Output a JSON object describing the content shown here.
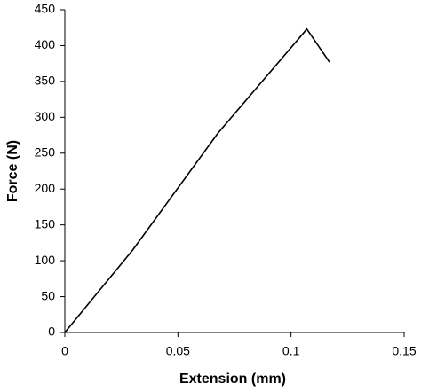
{
  "chart_data": {
    "type": "line",
    "x_label": "Extension (mm)",
    "y_label": "Force (N)",
    "series": [
      {
        "color": "#000000",
        "x": [
          0,
          0.03,
          0.0677,
          0.107,
          0.117
        ],
        "values": [
          0,
          115,
          278,
          423,
          377
        ]
      }
    ],
    "xlim": [
      0,
      0.15
    ],
    "xticks": [
      0,
      0.05,
      0.1,
      0.15
    ],
    "ylim": [
      0,
      450
    ],
    "yticks": [
      0,
      50,
      100,
      150,
      200,
      250,
      300,
      350,
      400,
      450
    ],
    "grid": false
  }
}
